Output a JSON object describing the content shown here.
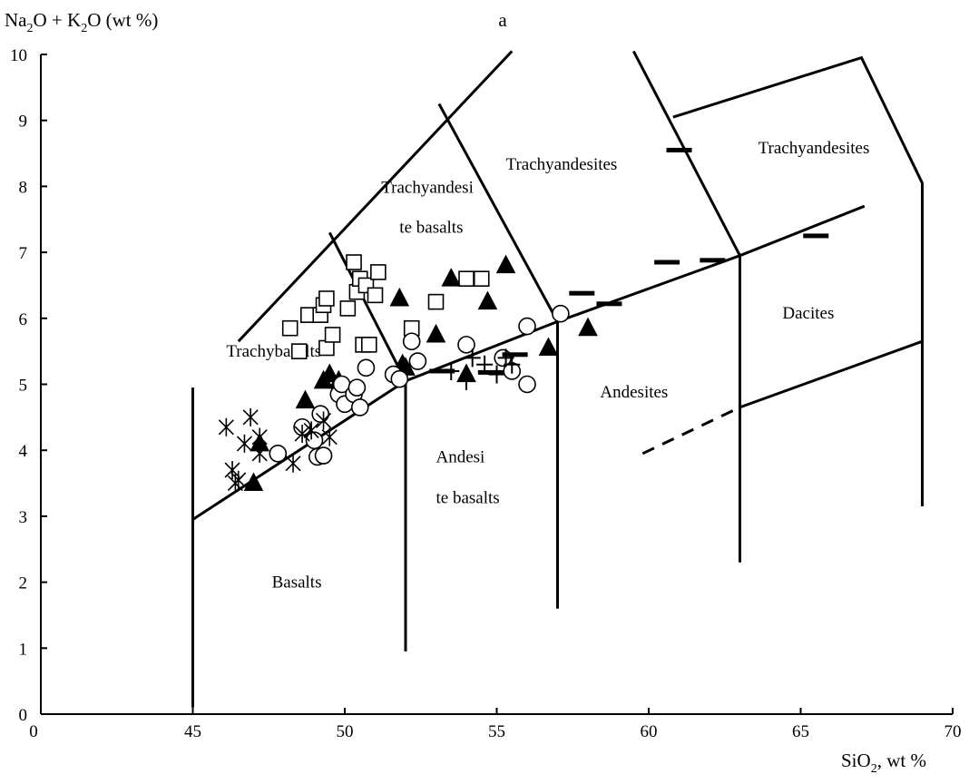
{
  "chart_data": {
    "type": "scatter",
    "panel_label": "a",
    "ylabel": {
      "a": "Na",
      "b": "2",
      "c": "O + K",
      "d": "2",
      "e": "O (wt %)"
    },
    "xlabel": {
      "a": "SiO",
      "b": "2",
      "c": ", wt %"
    },
    "x_origin_label": "0",
    "xlim": [
      40,
      70
    ],
    "ylim": [
      0,
      10
    ],
    "x_ticks": [
      45,
      50,
      55,
      60,
      65,
      70
    ],
    "y_ticks": [
      0,
      1,
      2,
      3,
      4,
      5,
      6,
      7,
      8,
      9,
      10
    ],
    "grid": false,
    "boundaries": [
      {
        "style": "solid",
        "points": [
          [
            45,
            0.1
          ],
          [
            45,
            4.95
          ]
        ]
      },
      {
        "style": "solid",
        "points": [
          [
            45,
            2.95
          ],
          [
            52,
            5.05
          ],
          [
            57,
            5.95
          ],
          [
            63,
            6.95
          ],
          [
            67.1,
            7.7
          ]
        ]
      },
      {
        "style": "solid",
        "points": [
          [
            52,
            0.95
          ],
          [
            52,
            5.05
          ]
        ]
      },
      {
        "style": "solid",
        "points": [
          [
            57,
            1.6
          ],
          [
            57,
            5.95
          ]
        ]
      },
      {
        "style": "solid",
        "points": [
          [
            63,
            2.3
          ],
          [
            63,
            6.95
          ]
        ]
      },
      {
        "style": "solid",
        "points": [
          [
            69,
            3.15
          ],
          [
            69,
            8.05
          ],
          [
            67,
            9.95
          ],
          [
            60.8,
            9.05
          ]
        ]
      },
      {
        "style": "solid",
        "points": [
          [
            63,
            4.65
          ],
          [
            69,
            5.65
          ]
        ]
      },
      {
        "style": "dashed",
        "points": [
          [
            59.8,
            3.95
          ],
          [
            63,
            4.65
          ]
        ]
      },
      {
        "style": "solid",
        "points": [
          [
            46.5,
            5.65
          ],
          [
            55.5,
            10.05
          ]
        ]
      },
      {
        "style": "solid",
        "points": [
          [
            49.5,
            7.3
          ],
          [
            52,
            5.05
          ]
        ]
      },
      {
        "style": "solid",
        "points": [
          [
            53.1,
            9.25
          ],
          [
            57,
            5.95
          ]
        ]
      },
      {
        "style": "solid",
        "points": [
          [
            59.5,
            10.05
          ],
          [
            63,
            6.95
          ]
        ]
      }
    ],
    "region_labels": [
      {
        "name": "Basalts",
        "x": 47.6,
        "y": 1.92
      },
      {
        "name": "Trachybasalts",
        "x": 46.1,
        "y": 5.42
      },
      {
        "name": "Trachyandesi",
        "x": 51.2,
        "y": 7.9
      },
      {
        "name": "te basalts",
        "x": 51.8,
        "y": 7.3
      },
      {
        "name": "Andesi",
        "x": 53,
        "y": 3.82
      },
      {
        "name": "te basalts",
        "x": 53,
        "y": 3.2
      },
      {
        "name": "Trachyandesites",
        "x": 55.3,
        "y": 8.25
      },
      {
        "name": "Andesites",
        "x": 58.4,
        "y": 4.8
      },
      {
        "name": "Trachyandesites",
        "x": 63.6,
        "y": 8.5
      },
      {
        "name": "Dacites",
        "x": 64.4,
        "y": 6.0
      }
    ],
    "series": [
      {
        "marker": "square",
        "points": [
          [
            48.2,
            5.85
          ],
          [
            48.5,
            5.5
          ],
          [
            48.8,
            6.05
          ],
          [
            49.2,
            6.05
          ],
          [
            49.3,
            6.2
          ],
          [
            49.4,
            6.3
          ],
          [
            49.4,
            5.55
          ],
          [
            49.6,
            5.75
          ],
          [
            50.1,
            6.15
          ],
          [
            50.3,
            6.85
          ],
          [
            50.4,
            6.4
          ],
          [
            50.5,
            6.6
          ],
          [
            50.7,
            6.5
          ],
          [
            50.6,
            5.6
          ],
          [
            50.8,
            5.6
          ],
          [
            51.0,
            6.35
          ],
          [
            51.1,
            6.7
          ],
          [
            52.2,
            5.85
          ],
          [
            53.0,
            6.25
          ],
          [
            54.0,
            6.6
          ],
          [
            54.5,
            6.6
          ]
        ]
      },
      {
        "marker": "triangle",
        "points": [
          [
            47.0,
            3.5
          ],
          [
            47.2,
            4.1
          ],
          [
            48.7,
            4.75
          ],
          [
            49.3,
            5.05
          ],
          [
            49.5,
            5.15
          ],
          [
            49.8,
            5.05
          ],
          [
            51.8,
            6.3
          ],
          [
            51.9,
            5.3
          ],
          [
            52.0,
            5.25
          ],
          [
            53.0,
            5.75
          ],
          [
            53.5,
            6.6
          ],
          [
            54.0,
            5.15
          ],
          [
            54.7,
            6.25
          ],
          [
            55.3,
            6.8
          ],
          [
            56.7,
            5.55
          ],
          [
            58.0,
            5.85
          ]
        ]
      },
      {
        "marker": "circle",
        "points": [
          [
            47.8,
            3.95
          ],
          [
            48.6,
            4.35
          ],
          [
            49.0,
            4.15
          ],
          [
            49.1,
            3.9
          ],
          [
            49.3,
            3.92
          ],
          [
            49.2,
            4.55
          ],
          [
            49.8,
            4.85
          ],
          [
            49.9,
            5.0
          ],
          [
            50.0,
            4.7
          ],
          [
            50.3,
            4.85
          ],
          [
            50.4,
            4.95
          ],
          [
            50.5,
            4.65
          ],
          [
            50.7,
            5.25
          ],
          [
            51.6,
            5.15
          ],
          [
            51.8,
            5.08
          ],
          [
            52.2,
            5.65
          ],
          [
            52.4,
            5.35
          ],
          [
            54.0,
            5.6
          ],
          [
            55.2,
            5.4
          ],
          [
            55.5,
            5.2
          ],
          [
            56.0,
            5.0
          ],
          [
            56.0,
            5.88
          ],
          [
            57.1,
            6.07
          ]
        ]
      },
      {
        "marker": "asterisk",
        "points": [
          [
            46.1,
            4.35
          ],
          [
            46.3,
            3.7
          ],
          [
            46.4,
            3.5
          ],
          [
            46.5,
            3.55
          ],
          [
            46.7,
            4.1
          ],
          [
            46.9,
            4.5
          ],
          [
            47.2,
            4.2
          ],
          [
            47.2,
            3.95
          ],
          [
            48.3,
            3.8
          ],
          [
            48.6,
            4.25
          ],
          [
            48.9,
            4.3
          ],
          [
            49.3,
            4.45
          ],
          [
            49.5,
            4.2
          ]
        ]
      },
      {
        "marker": "plus",
        "points": [
          [
            53.5,
            5.2
          ],
          [
            54.0,
            5.05
          ],
          [
            54.2,
            5.4
          ],
          [
            54.6,
            5.3
          ],
          [
            55.0,
            5.15
          ],
          [
            55.3,
            5.4
          ],
          [
            55.5,
            5.3
          ]
        ]
      },
      {
        "marker": "dash",
        "points": [
          [
            53.2,
            5.2
          ],
          [
            54.8,
            5.18
          ],
          [
            55.6,
            5.45
          ],
          [
            57.8,
            6.38
          ],
          [
            58.7,
            6.22
          ],
          [
            60.6,
            6.85
          ],
          [
            62.1,
            6.88
          ],
          [
            61.0,
            8.55
          ],
          [
            65.5,
            7.25
          ]
        ]
      }
    ]
  }
}
